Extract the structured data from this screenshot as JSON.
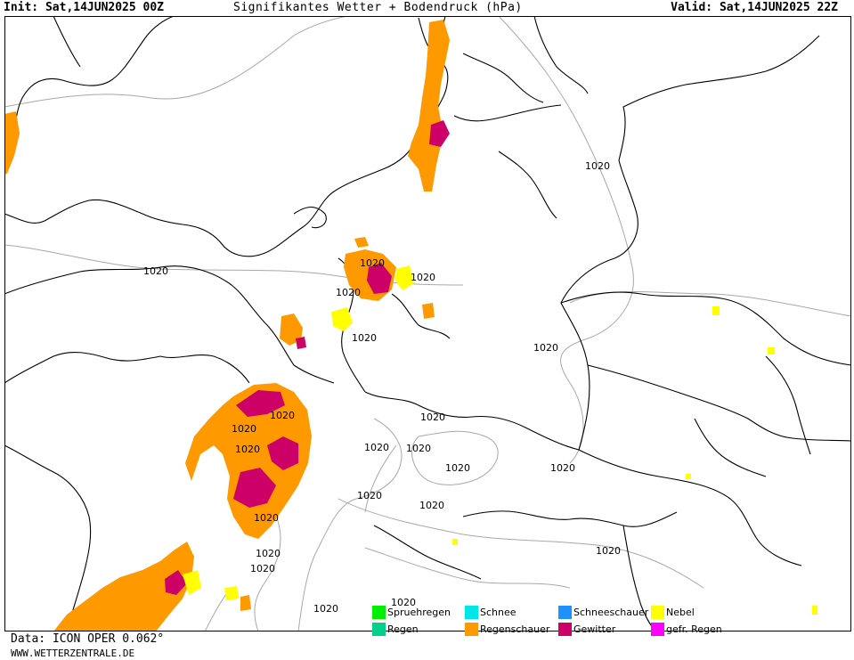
{
  "header": {
    "init": "Init: Sat,14JUN2025 00Z",
    "title": "Signifikantes Wetter + Bodendruck (hPa)",
    "valid": "Valid: Sat,14JUN2025 22Z"
  },
  "footer": {
    "data_source": "Data: ICON OPER 0.062°",
    "site": "WWW.WETTERZENTRALE.DE"
  },
  "legend": [
    {
      "label": "Spruehregen",
      "color": "#00ee00"
    },
    {
      "label": "Regen",
      "color": "#00d08a"
    },
    {
      "label": "Schnee",
      "color": "#00e5e5"
    },
    {
      "label": "Regenschauer",
      "color": "#ff9900"
    },
    {
      "label": "Schneeschauer",
      "color": "#1e90ff"
    },
    {
      "label": "Gewitter",
      "color": "#cc0066"
    },
    {
      "label": "Nebel",
      "color": "#ffff00"
    },
    {
      "label": "gefr. Regen",
      "color": "#ff00ff"
    }
  ],
  "isobar_labels": [
    "1020",
    "1020",
    "1020",
    "1020",
    "1020",
    "1020",
    "1020",
    "1020",
    "1020",
    "1020",
    "1020",
    "1020",
    "1020",
    "1020",
    "1020",
    "1020",
    "1020",
    "1020",
    "1020",
    "1020",
    "1020",
    "1020"
  ],
  "colors": {
    "coastline": "#000000",
    "isobar": "#a8a8a8",
    "showers": "#ff9900",
    "thunderstorm": "#cc0066",
    "fog": "#ffff00"
  }
}
